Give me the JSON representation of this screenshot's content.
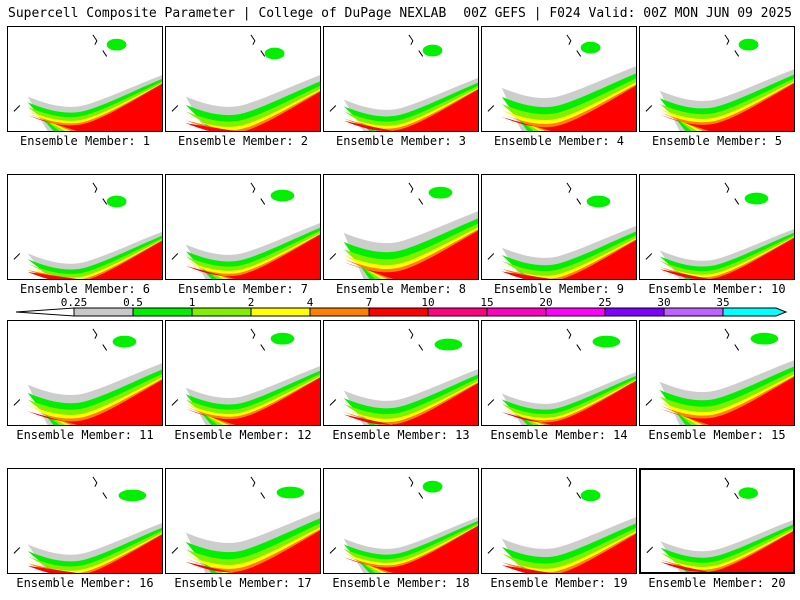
{
  "header": {
    "left_title": "Supercell Composite Parameter | College of DuPage NEXLAB",
    "right_title": "00Z GEFS | F024 Valid: 00Z MON JUN 09 2025"
  },
  "members": [
    "Ensemble Member: 1",
    "Ensemble Member: 2",
    "Ensemble Member: 3",
    "Ensemble Member: 4",
    "Ensemble Member: 5",
    "Ensemble Member: 6",
    "Ensemble Member: 7",
    "Ensemble Member: 8",
    "Ensemble Member: 9",
    "Ensemble Member: 10",
    "Ensemble Member: 11",
    "Ensemble Member: 12",
    "Ensemble Member: 13",
    "Ensemble Member: 14",
    "Ensemble Member: 15",
    "Ensemble Member: 16",
    "Ensemble Member: 17",
    "Ensemble Member: 18",
    "Ensemble Member: 19",
    "Ensemble Member: 20"
  ],
  "selected_member": 20,
  "colorbar": {
    "ticks": [
      "0.25",
      "0.5",
      "1",
      "2",
      "4",
      "7",
      "10",
      "15",
      "20",
      "25",
      "30",
      "35"
    ],
    "colors": [
      "#c8c8c8",
      "#00f000",
      "#80f000",
      "#ffff00",
      "#ff8000",
      "#ff0000",
      "#ff0080",
      "#ff00c0",
      "#ff00ff",
      "#8000ff",
      "#c060ff",
      "#00ffff"
    ]
  }
}
